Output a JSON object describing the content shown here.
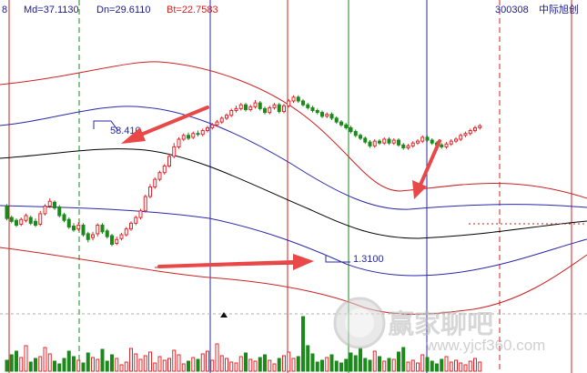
{
  "header": {
    "left_fragment": "8",
    "md_label": "Md=37.1130",
    "dn_label": "Dn=29.6110",
    "bt_label": "Bt=22.7583",
    "code": "300308",
    "stock_name": "中际旭创"
  },
  "annotations": {
    "high_label": "58.410",
    "low_label": "1.3100"
  },
  "watermark": {
    "title": "赢家聊吧",
    "url": "www.yjcf360.com"
  },
  "colors": {
    "up": "#e8242a",
    "down": "#1a8a1a",
    "mid_band": "#000000",
    "inner_band": "#2828a8",
    "outer_band": "#cc2222",
    "arrow": "#e84848",
    "header_text": "#1a1a8a"
  },
  "chart_data": {
    "type": "candlestick",
    "annotated_values": {
      "high": 58.41,
      "low": 1.31
    },
    "indicator": {
      "Md": 37.113,
      "Dn": 29.611,
      "Bt": 22.7583
    },
    "candles": [
      [
        170,
        157,
        172,
        155
      ],
      [
        158,
        154,
        160,
        152
      ],
      [
        155,
        150,
        157,
        148
      ],
      [
        151,
        156,
        158,
        149
      ],
      [
        155,
        160,
        162,
        153
      ],
      [
        158,
        152,
        160,
        150
      ],
      [
        154,
        150,
        157,
        148
      ],
      [
        151,
        162,
        165,
        149
      ],
      [
        162,
        170,
        172,
        160
      ],
      [
        170,
        175,
        178,
        168
      ],
      [
        174,
        168,
        176,
        166
      ],
      [
        169,
        160,
        171,
        158
      ],
      [
        161,
        155,
        163,
        153
      ],
      [
        156,
        148,
        158,
        146
      ],
      [
        149,
        145,
        152,
        143
      ],
      [
        146,
        150,
        153,
        144
      ],
      [
        150,
        140,
        152,
        138
      ],
      [
        141,
        135,
        143,
        132
      ],
      [
        137,
        140,
        143,
        134
      ],
      [
        141,
        150,
        152,
        138
      ],
      [
        150,
        143,
        152,
        141
      ],
      [
        144,
        138,
        146,
        136
      ],
      [
        139,
        130,
        141,
        128
      ],
      [
        131,
        135,
        138,
        129
      ],
      [
        136,
        140,
        142,
        134
      ],
      [
        140,
        146,
        148,
        138
      ],
      [
        146,
        152,
        154,
        144
      ],
      [
        152,
        158,
        160,
        150
      ],
      [
        158,
        165,
        167,
        156
      ],
      [
        165,
        180,
        182,
        163
      ],
      [
        180,
        190,
        193,
        178
      ],
      [
        190,
        198,
        200,
        188
      ],
      [
        198,
        205,
        207,
        196
      ],
      [
        205,
        212,
        214,
        203
      ],
      [
        212,
        222,
        225,
        210
      ],
      [
        222,
        232,
        236,
        220
      ],
      [
        232,
        240,
        242,
        230
      ],
      [
        240,
        244,
        246,
        238
      ],
      [
        244,
        241,
        247,
        239
      ],
      [
        242,
        246,
        248,
        240
      ],
      [
        246,
        245,
        249,
        243
      ],
      [
        245,
        249,
        251,
        243
      ],
      [
        249,
        252,
        254,
        247
      ],
      [
        252,
        255,
        257,
        250
      ],
      [
        255,
        258,
        260,
        253
      ],
      [
        258,
        262,
        264,
        256
      ],
      [
        262,
        265,
        267,
        260
      ],
      [
        265,
        270,
        272,
        263
      ],
      [
        270,
        272,
        275,
        268
      ],
      [
        272,
        276,
        278,
        270
      ],
      [
        276,
        271,
        278,
        269
      ],
      [
        271,
        274,
        276,
        269
      ],
      [
        274,
        278,
        281,
        272
      ],
      [
        278,
        272,
        280,
        270
      ],
      [
        272,
        268,
        274,
        266
      ],
      [
        268,
        273,
        275,
        266
      ],
      [
        273,
        276,
        278,
        271
      ],
      [
        276,
        269,
        278,
        267
      ],
      [
        269,
        275,
        277,
        267
      ],
      [
        275,
        280,
        282,
        273
      ],
      [
        280,
        284,
        286,
        278
      ],
      [
        284,
        280,
        286,
        278
      ],
      [
        280,
        276,
        282,
        274
      ],
      [
        276,
        273,
        278,
        271
      ],
      [
        273,
        270,
        275,
        268
      ],
      [
        270,
        268,
        272,
        266
      ],
      [
        268,
        264,
        270,
        262
      ],
      [
        264,
        266,
        268,
        262
      ],
      [
        266,
        262,
        268,
        260
      ],
      [
        262,
        258,
        264,
        256
      ],
      [
        258,
        255,
        260,
        253
      ],
      [
        255,
        252,
        257,
        250
      ],
      [
        252,
        248,
        254,
        246
      ],
      [
        248,
        244,
        250,
        242
      ],
      [
        244,
        241,
        246,
        239
      ],
      [
        241,
        237,
        243,
        235
      ],
      [
        237,
        233,
        239,
        231
      ],
      [
        233,
        238,
        240,
        231
      ],
      [
        238,
        236,
        240,
        234
      ],
      [
        236,
        240,
        242,
        234
      ],
      [
        240,
        236,
        242,
        234
      ],
      [
        236,
        239,
        241,
        234
      ],
      [
        239,
        234,
        241,
        232
      ],
      [
        234,
        231,
        236,
        229
      ],
      [
        231,
        233,
        235,
        229
      ],
      [
        233,
        236,
        238,
        231
      ],
      [
        236,
        238,
        240,
        234
      ],
      [
        238,
        242,
        244,
        236
      ],
      [
        242,
        239,
        244,
        237
      ],
      [
        239,
        236,
        241,
        234
      ],
      [
        236,
        234,
        238,
        232
      ],
      [
        234,
        232,
        236,
        230
      ],
      [
        232,
        235,
        237,
        230
      ],
      [
        235,
        238,
        240,
        233
      ],
      [
        238,
        240,
        242,
        236
      ],
      [
        240,
        244,
        246,
        238
      ],
      [
        244,
        246,
        248,
        242
      ],
      [
        246,
        249,
        251,
        244
      ],
      [
        249,
        252,
        254,
        247
      ],
      [
        252,
        254,
        256,
        250
      ]
    ],
    "volume": [
      12,
      18,
      22,
      15,
      28,
      10,
      14,
      16,
      26,
      19,
      11,
      8,
      14,
      22,
      16,
      12,
      9,
      20,
      15,
      13,
      24,
      11,
      18,
      14,
      7,
      10,
      25,
      19,
      13,
      17,
      21,
      9,
      16,
      12,
      14,
      23,
      18,
      8,
      11,
      15,
      13,
      19,
      22,
      12,
      30,
      17,
      14,
      10,
      9,
      16,
      20,
      13,
      11,
      15,
      18,
      12,
      8,
      14,
      17,
      21,
      14,
      16,
      60,
      28,
      19,
      10,
      12,
      15,
      18,
      11,
      9,
      13,
      20,
      17,
      25,
      14,
      12,
      22,
      16,
      11,
      14,
      13,
      21,
      26,
      10,
      12,
      9,
      18,
      15,
      11,
      8,
      13,
      16,
      10,
      12,
      9,
      7,
      11,
      14,
      10
    ]
  }
}
